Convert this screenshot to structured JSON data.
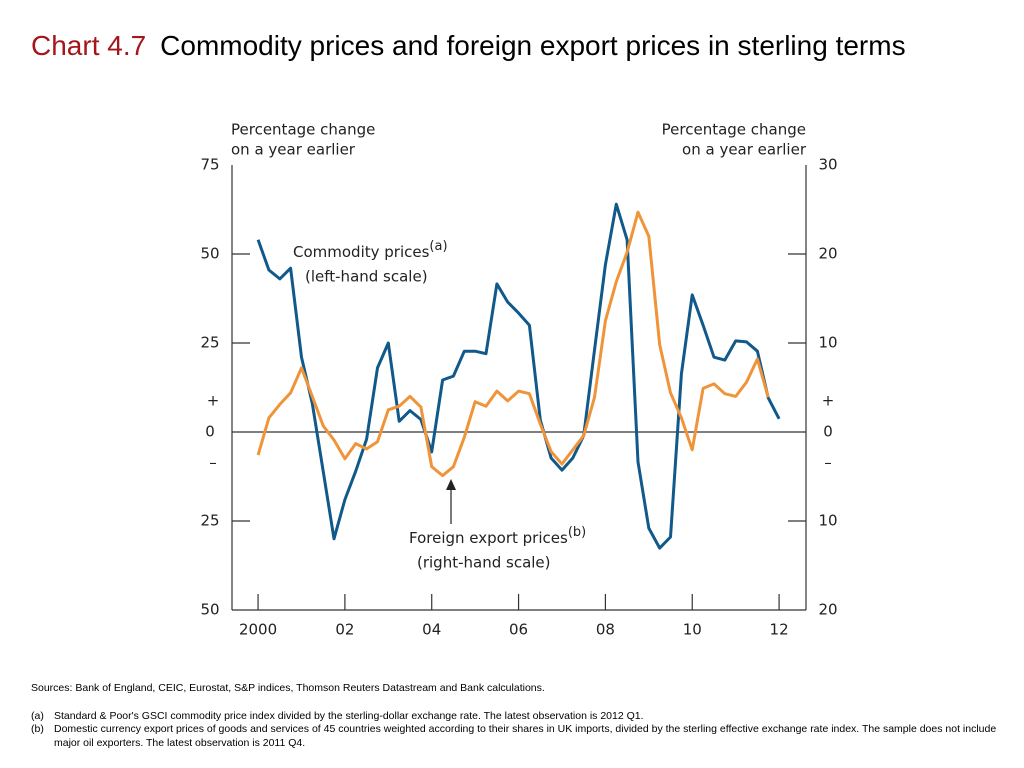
{
  "chart_data": {
    "type": "line",
    "chart_number": "Chart 4.7",
    "title": "Commodity prices and foreign export prices in sterling terms",
    "y_axis_label": [
      "Percentage change",
      "on a year earlier"
    ],
    "y2_axis_label": [
      "Percentage change",
      "on a year earlier"
    ],
    "sign_labels": {
      "plus": "+",
      "minus": "–"
    },
    "xlim": [
      1999.4,
      2012.62
    ],
    "xticks": [
      {
        "value": 2000,
        "label": "2000"
      },
      {
        "value": 2002,
        "label": "02"
      },
      {
        "value": 2004,
        "label": "04"
      },
      {
        "value": 2006,
        "label": "06"
      },
      {
        "value": 2008,
        "label": "08"
      },
      {
        "value": 2010,
        "label": "10"
      },
      {
        "value": 2012,
        "label": "12"
      }
    ],
    "ylim": [
      -50,
      75
    ],
    "yticks": [
      {
        "value": -50,
        "label": "50"
      },
      {
        "value": -25,
        "label": "25"
      },
      0,
      25,
      50,
      75
    ],
    "y2lim": [
      -20,
      30
    ],
    "y2ticks": [
      {
        "value": -20,
        "label": "20"
      },
      {
        "value": -10,
        "label": "10"
      },
      0,
      10,
      20,
      30
    ],
    "series": [
      {
        "name": "Commodity prices",
        "note": "(a)",
        "scale_label": "(left-hand scale)",
        "color": "#10598a",
        "axis": "y",
        "x": [
          2000,
          2000.25,
          2000.5,
          2000.75,
          2001,
          2001.25,
          2001.5,
          2001.75,
          2002,
          2002.25,
          2002.5,
          2002.75,
          2003,
          2003.25,
          2003.5,
          2003.75,
          2004,
          2004.25,
          2004.5,
          2004.75,
          2005,
          2005.25,
          2005.5,
          2005.75,
          2006,
          2006.25,
          2006.5,
          2006.75,
          2007,
          2007.25,
          2007.5,
          2007.75,
          2008,
          2008.25,
          2008.5,
          2008.75,
          2009,
          2009.25,
          2009.5,
          2009.75,
          2010,
          2010.25,
          2010.5,
          2010.75,
          2011,
          2011.25,
          2011.5,
          2011.75,
          2012
        ],
        "values": [
          54,
          45.5,
          43,
          46,
          21,
          8,
          -11,
          -30,
          -19,
          -11,
          -2,
          18,
          25,
          3,
          6,
          3.5,
          -5.6,
          14.6,
          15.7,
          22.7,
          22.7,
          22,
          41.6,
          36.5,
          33.4,
          30,
          3.4,
          -7.3,
          -10.7,
          -7.3,
          -1,
          23,
          47,
          64,
          54,
          -8.4,
          -27,
          -32.6,
          -29.5,
          16.3,
          38.5,
          30,
          21,
          20.2,
          25.6,
          25.3,
          22.7,
          9.6,
          3.7
        ]
      },
      {
        "name": "Foreign export prices",
        "note": "(b)",
        "scale_label": "(right-hand scale)",
        "color": "#f0943a",
        "axis": "y2",
        "x": [
          2000,
          2000.25,
          2000.5,
          2000.75,
          2001,
          2001.25,
          2001.5,
          2001.75,
          2002,
          2002.25,
          2002.5,
          2002.75,
          2003,
          2003.25,
          2003.5,
          2003.75,
          2004,
          2004.25,
          2004.5,
          2004.75,
          2005,
          2005.25,
          2005.5,
          2005.75,
          2006,
          2006.25,
          2006.5,
          2006.75,
          2007,
          2007.25,
          2007.5,
          2007.75,
          2008,
          2008.25,
          2008.5,
          2008.75,
          2009,
          2009.25,
          2009.5,
          2009.75,
          2010,
          2010.25,
          2010.5,
          2010.75,
          2011,
          2011.25,
          2011.5,
          2011.75
        ],
        "values": [
          -2.6,
          1.6,
          3.1,
          4.4,
          7.2,
          4,
          0.7,
          -0.9,
          -3,
          -1.3,
          -1.9,
          -1.1,
          2.5,
          2.9,
          4,
          2.8,
          -3.9,
          -4.9,
          -3.9,
          -0.6,
          3.4,
          2.9,
          4.6,
          3.5,
          4.6,
          4.3,
          0.9,
          -2.2,
          -3.6,
          -2,
          -0.4,
          3.9,
          12.5,
          16.9,
          20.2,
          24.7,
          22,
          9.8,
          4.4,
          1.6,
          -2,
          4.9,
          5.4,
          4.3,
          4,
          5.6,
          8.2,
          3.9
        ]
      }
    ]
  },
  "footnotes": {
    "sources": "Sources:  Bank of England, CEIC, Eurostat, S&P indices, Thomson Reuters Datastream and Bank calculations.",
    "notes": [
      {
        "marker": "(a)",
        "text": "Standard & Poor's GSCI commodity price index divided by the sterling-dollar exchange rate.  The latest observation is 2012 Q1."
      },
      {
        "marker": "(b)",
        "text": "Domestic currency export prices of goods and services of 45 countries weighted according to their shares in UK imports, divided by the sterling effective exchange rate index.  The sample does not include major oil exporters.  The latest observation is 2011 Q4."
      }
    ]
  }
}
